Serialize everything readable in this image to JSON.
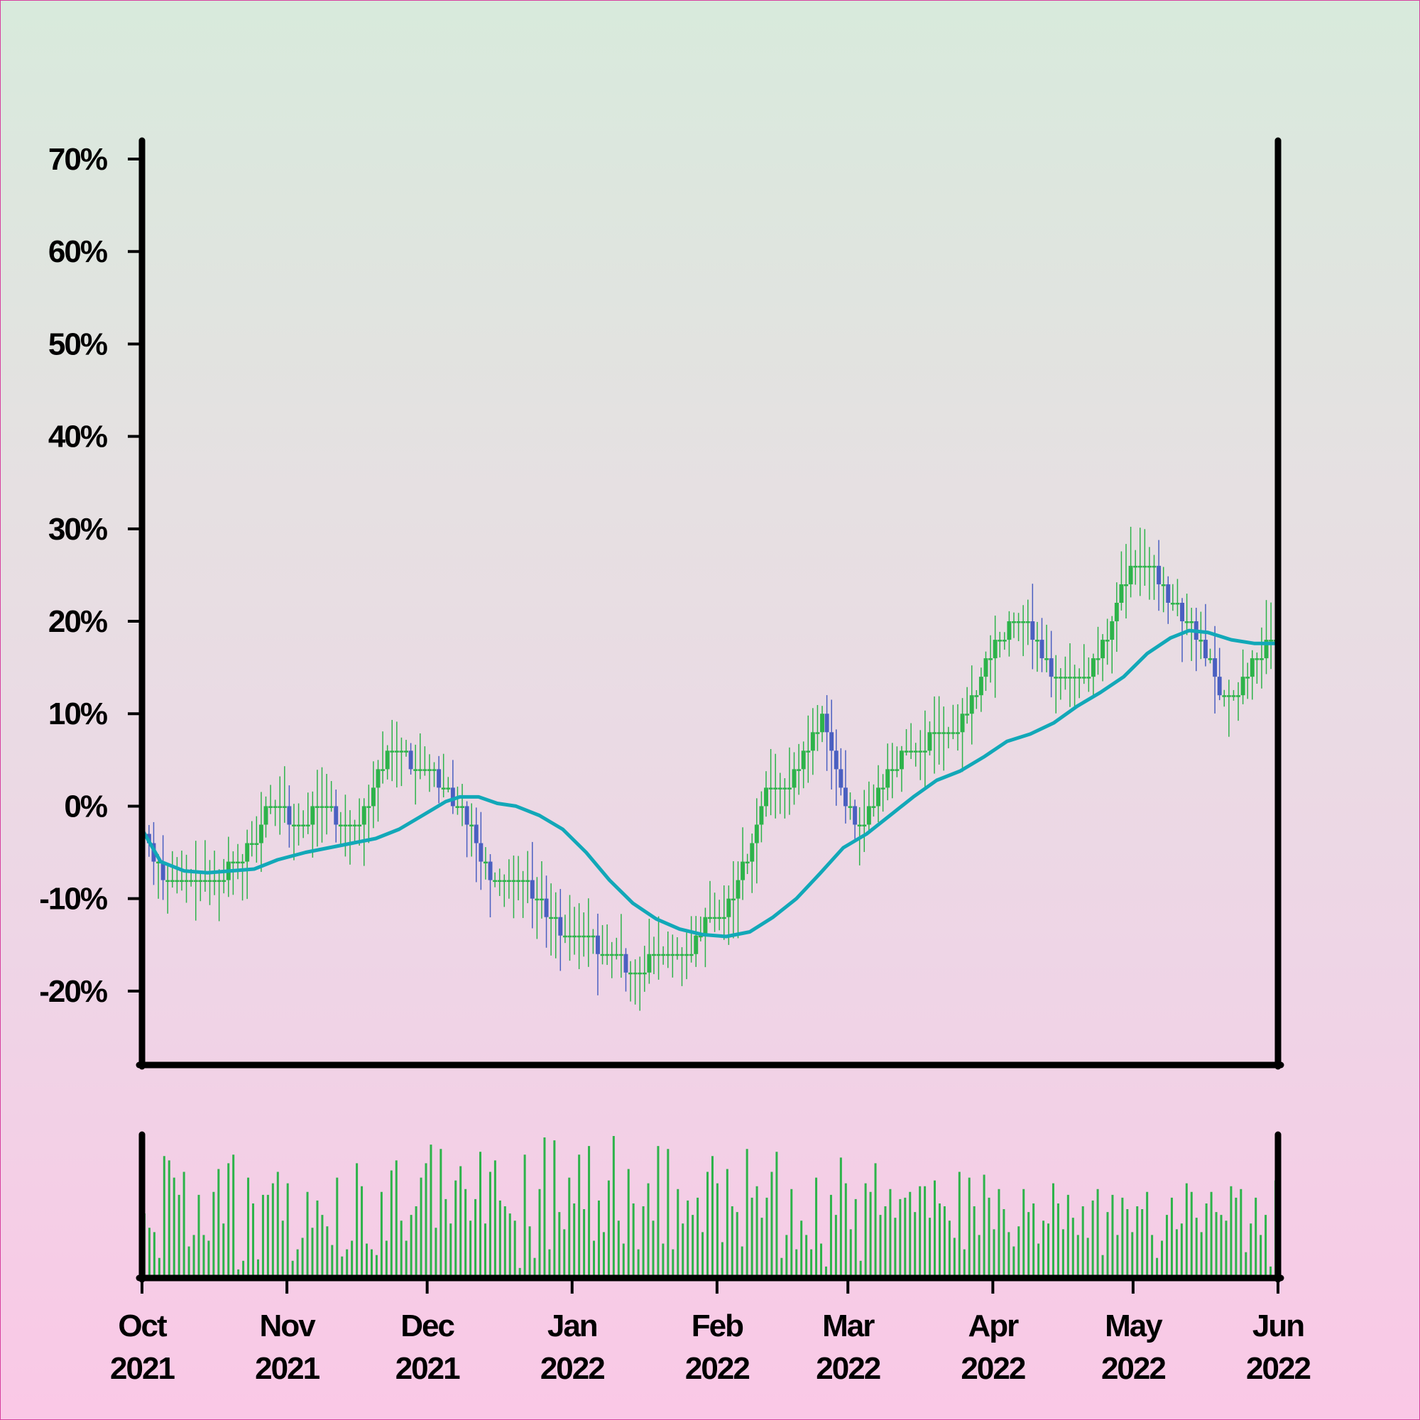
{
  "chart_data": [
    {
      "type": "candlestick",
      "panel": "price",
      "title": "",
      "xlabel": "",
      "ylabel": "",
      "y_unit": "%",
      "ylim": [
        -28,
        72
      ],
      "y_ticks": [
        -20,
        -10,
        0,
        10,
        20,
        30,
        40,
        50,
        60,
        70
      ],
      "y_tick_labels": [
        "-20%",
        "-10%",
        "0%",
        "10%",
        "20%",
        "30%",
        "40%",
        "50%",
        "60%",
        "70%"
      ],
      "x_range": [
        "2021-10-01",
        "2022-06-01"
      ],
      "x_ticks": [
        "2021-10-01",
        "2021-11-01",
        "2021-12-01",
        "2022-01-01",
        "2022-02-01",
        "2022-03-01",
        "2022-04-01",
        "2022-05-01",
        "2022-06-01"
      ],
      "x_tick_labels": [
        [
          "Oct",
          "2021"
        ],
        [
          "Nov",
          "2021"
        ],
        [
          "Dec",
          "2021"
        ],
        [
          "Jan",
          "2022"
        ],
        [
          "Feb",
          "2022"
        ],
        [
          "Mar",
          "2022"
        ],
        [
          "Apr",
          "2022"
        ],
        [
          "May",
          "2022"
        ],
        [
          "Jun",
          "2022"
        ]
      ],
      "up_color": "#2db34a",
      "down_color": "#4a5fc1",
      "grid": false,
      "series": [
        {
          "kind": "close",
          "points": [
            [
              "2021-10-01",
              -3
            ],
            [
              "2021-10-05",
              -7
            ],
            [
              "2021-10-09",
              -9
            ],
            [
              "2021-10-13",
              -8
            ],
            [
              "2021-10-17",
              -8
            ],
            [
              "2021-10-21",
              -6
            ],
            [
              "2021-10-25",
              -4
            ],
            [
              "2021-10-29",
              1
            ],
            [
              "2021-11-02",
              -2
            ],
            [
              "2021-11-06",
              -1
            ],
            [
              "2021-11-10",
              0
            ],
            [
              "2021-11-14",
              -3
            ],
            [
              "2021-11-18",
              0
            ],
            [
              "2021-11-22",
              5
            ],
            [
              "2021-11-25",
              7
            ],
            [
              "2021-11-29",
              3
            ],
            [
              "2021-12-02",
              4
            ],
            [
              "2021-12-06",
              1
            ],
            [
              "2021-12-10",
              -2
            ],
            [
              "2021-12-14",
              -7
            ],
            [
              "2021-12-18",
              -9
            ],
            [
              "2021-12-22",
              -8
            ],
            [
              "2021-12-26",
              -11
            ],
            [
              "2022-01-01",
              -15
            ],
            [
              "2022-01-06",
              -15
            ],
            [
              "2022-01-12",
              -17
            ],
            [
              "2022-01-16",
              -18
            ],
            [
              "2022-01-20",
              -15
            ],
            [
              "2022-01-25",
              -17
            ],
            [
              "2022-01-30",
              -12
            ],
            [
              "2022-02-03",
              -11
            ],
            [
              "2022-02-07",
              -6
            ],
            [
              "2022-02-11",
              1
            ],
            [
              "2022-02-15",
              1
            ],
            [
              "2022-02-19",
              5
            ],
            [
              "2022-02-24",
              10
            ],
            [
              "2022-02-28",
              0
            ],
            [
              "2022-03-04",
              -2
            ],
            [
              "2022-03-08",
              2
            ],
            [
              "2022-03-12",
              5
            ],
            [
              "2022-03-16",
              5
            ],
            [
              "2022-03-20",
              9
            ],
            [
              "2022-03-24",
              8
            ],
            [
              "2022-03-28",
              12
            ],
            [
              "2022-04-01",
              17
            ],
            [
              "2022-04-05",
              20
            ],
            [
              "2022-04-09",
              19
            ],
            [
              "2022-04-13",
              15
            ],
            [
              "2022-04-17",
              13
            ],
            [
              "2022-04-21",
              14
            ],
            [
              "2022-04-25",
              18
            ],
            [
              "2022-04-29",
              24
            ],
            [
              "2022-05-02",
              27
            ],
            [
              "2022-05-05",
              26
            ],
            [
              "2022-05-09",
              22
            ],
            [
              "2022-05-13",
              20
            ],
            [
              "2022-05-17",
              16
            ],
            [
              "2022-05-21",
              11
            ],
            [
              "2022-05-25",
              14
            ],
            [
              "2022-05-29",
              17
            ],
            [
              "2022-06-01",
              17
            ]
          ]
        },
        {
          "kind": "moving-average",
          "color": "#12a8b8",
          "points": [
            [
              "2021-10-01",
              -2.5
            ],
            [
              "2021-10-05",
              -6
            ],
            [
              "2021-10-10",
              -7
            ],
            [
              "2021-10-15",
              -7.2
            ],
            [
              "2021-10-20",
              -7
            ],
            [
              "2021-10-25",
              -6.8
            ],
            [
              "2021-10-30",
              -5.8
            ],
            [
              "2021-11-05",
              -5
            ],
            [
              "2021-11-10",
              -4.5
            ],
            [
              "2021-11-15",
              -4
            ],
            [
              "2021-11-20",
              -3.5
            ],
            [
              "2021-11-25",
              -2.5
            ],
            [
              "2021-11-30",
              -1
            ],
            [
              "2021-12-05",
              0.5
            ],
            [
              "2021-12-08",
              1
            ],
            [
              "2021-12-12",
              1
            ],
            [
              "2021-12-16",
              0.3
            ],
            [
              "2021-12-20",
              0
            ],
            [
              "2021-12-25",
              -1
            ],
            [
              "2021-12-30",
              -2.5
            ],
            [
              "2022-01-04",
              -5
            ],
            [
              "2022-01-09",
              -8
            ],
            [
              "2022-01-14",
              -10.5
            ],
            [
              "2022-01-19",
              -12.2
            ],
            [
              "2022-01-24",
              -13.3
            ],
            [
              "2022-01-29",
              -13.9
            ],
            [
              "2022-02-03",
              -14.1
            ],
            [
              "2022-02-08",
              -13.6
            ],
            [
              "2022-02-13",
              -12
            ],
            [
              "2022-02-18",
              -10
            ],
            [
              "2022-02-23",
              -7.3
            ],
            [
              "2022-02-28",
              -4.5
            ],
            [
              "2022-03-05",
              -3
            ],
            [
              "2022-03-10",
              -1
            ],
            [
              "2022-03-15",
              1
            ],
            [
              "2022-03-20",
              2.8
            ],
            [
              "2022-03-25",
              3.8
            ],
            [
              "2022-03-30",
              5.3
            ],
            [
              "2022-04-04",
              7
            ],
            [
              "2022-04-09",
              7.8
            ],
            [
              "2022-04-14",
              9
            ],
            [
              "2022-04-19",
              10.8
            ],
            [
              "2022-04-24",
              12.3
            ],
            [
              "2022-04-29",
              14
            ],
            [
              "2022-05-04",
              16.5
            ],
            [
              "2022-05-09",
              18.2
            ],
            [
              "2022-05-13",
              19
            ],
            [
              "2022-05-17",
              18.8
            ],
            [
              "2022-05-22",
              18
            ],
            [
              "2022-05-27",
              17.6
            ],
            [
              "2022-06-01",
              17.6
            ]
          ]
        }
      ]
    },
    {
      "type": "bar",
      "panel": "volume",
      "color": "#2db34a",
      "x_range": [
        "2021-10-01",
        "2022-06-01"
      ],
      "ylim": [
        0,
        1
      ],
      "values_note": "",
      "values": [
        0.45,
        0.35,
        0.32,
        0.14,
        0.85,
        0.82,
        0.7,
        0.58,
        0.74,
        0.22,
        0.3,
        0.58,
        0.3,
        0.26,
        0.6,
        0.76,
        0.38,
        0.8,
        0.86,
        0.06,
        0.12,
        0.7,
        0.52,
        0.13,
        0.58,
        0.58,
        0.66,
        0.74,
        0.4,
        0.66,
        0.12,
        0.2,
        0.28,
        0.6,
        0.35,
        0.54,
        0.44,
        0.36,
        0.23,
        0.7,
        0.15,
        0.2,
        0.26,
        0.8,
        0.64,
        0.24,
        0.2,
        0.16,
        0.6,
        0.26,
        0.75,
        0.82,
        0.4,
        0.26,
        0.44,
        0.5,
        0.7,
        0.8,
        0.93,
        0.35,
        0.9,
        0.55,
        0.38,
        0.68,
        0.78,
        0.62,
        0.4,
        0.55,
        0.88,
        0.38,
        0.74,
        0.82,
        0.54,
        0.5,
        0.45,
        0.4,
        0.07,
        0.86,
        0.36,
        0.14,
        0.62,
        0.98,
        0.2,
        0.96,
        0.46,
        0.34,
        0.7,
        0.52,
        0.86,
        0.48,
        0.92,
        0.26,
        0.54,
        0.32,
        0.68,
        0.99,
        0.4,
        0.24,
        0.76,
        0.52,
        0.2,
        0.5,
        0.66,
        0.4,
        0.92,
        0.24,
        0.9,
        0.2,
        0.62,
        0.38,
        0.54,
        0.44,
        0.56,
        0.32,
        0.74,
        0.85,
        0.66,
        0.25,
        0.76,
        0.5,
        0.46,
        0.22,
        0.9,
        0.56,
        0.64,
        0.42,
        0.56,
        0.74,
        0.88,
        0.14,
        0.3,
        0.62,
        0.2,
        0.4,
        0.3,
        0.2,
        0.7,
        0.24,
        0.08,
        0.58,
        0.44,
        0.84,
        0.66,
        0.34,
        0.55,
        0.12,
        0.66,
        0.6,
        0.8,
        0.44,
        0.5,
        0.62,
        0.42,
        0.55,
        0.56,
        0.6,
        0.46,
        0.64,
        0.64,
        0.42,
        0.68,
        0.52,
        0.5,
        0.4,
        0.28,
        0.74,
        0.2,
        0.7,
        0.5,
        0.3,
        0.72,
        0.56,
        0.34,
        0.62,
        0.48,
        0.32,
        0.22,
        0.36,
        0.62,
        0.46,
        0.52,
        0.24,
        0.4,
        0.38,
        0.66,
        0.52,
        0.34,
        0.58,
        0.42,
        0.3,
        0.5,
        0.28,
        0.54,
        0.62,
        0.16,
        0.46,
        0.58,
        0.3,
        0.56,
        0.48,
        0.32,
        0.5,
        0.48,
        0.6,
        0.3,
        0.14,
        0.26,
        0.44,
        0.56,
        0.34,
        0.38,
        0.66,
        0.6,
        0.42,
        0.32,
        0.52,
        0.6,
        0.46,
        0.44,
        0.4,
        0.64,
        0.56,
        0.62,
        0.18,
        0.38,
        0.56,
        0.3,
        0.44,
        0.08,
        0.68
      ]
    }
  ]
}
